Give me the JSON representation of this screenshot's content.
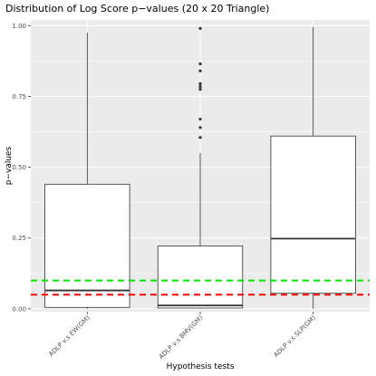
{
  "chart_data": {
    "type": "boxplot",
    "title": "Distribution of Log Score p−values (20 x 20 Triangle)",
    "xlabel": "Hypothesis tests",
    "ylabel": "p−values",
    "ylim": [
      -0.01,
      1.02
    ],
    "yticks": [
      0.0,
      0.25,
      0.5,
      0.75,
      1.0
    ],
    "ytick_labels": [
      "0.00",
      "0.25",
      "0.50",
      "0.75",
      "1.00"
    ],
    "grid": true,
    "categories": [
      "ADLP v.s EW(GM)",
      "ADLP v.s BMV(GM)",
      "ADLP v.s SLP(GM)"
    ],
    "boxes": [
      {
        "whisker_low": 0.0,
        "q1": 0.005,
        "median": 0.065,
        "q3": 0.44,
        "whisker_high": 0.975,
        "outliers": []
      },
      {
        "whisker_low": 0.0,
        "q1": 0.003,
        "median": 0.012,
        "q3": 0.222,
        "whisker_high": 0.55,
        "outliers": [
          0.99,
          0.865,
          0.84,
          0.795,
          0.785,
          0.775,
          0.67,
          0.64,
          0.605
        ]
      },
      {
        "whisker_low": 0.0,
        "q1": 0.055,
        "median": 0.248,
        "q3": 0.61,
        "whisker_high": 0.995,
        "outliers": []
      }
    ],
    "reference_lines": [
      {
        "value": 0.1,
        "color": "#00e600",
        "style": "dashed"
      },
      {
        "value": 0.05,
        "color": "#ff0000",
        "style": "dashed"
      }
    ],
    "colors": {
      "panel": "#ebebeb",
      "grid": "#ffffff",
      "box_fill": "#ffffff",
      "box_stroke": "#333333"
    }
  }
}
